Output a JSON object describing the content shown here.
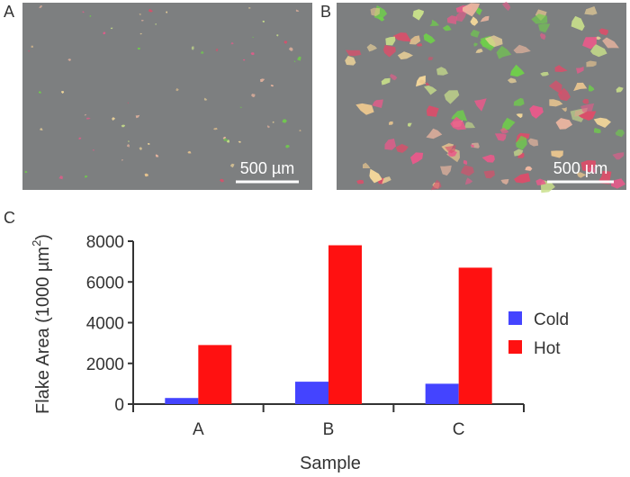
{
  "panels": [
    {
      "label": "A",
      "scale_label": "500 µm",
      "background": "#7d7f80",
      "flake_density": "low"
    },
    {
      "label": "B",
      "scale_label": "500 µm",
      "background": "#7d7f80",
      "flake_density": "high"
    },
    {
      "label": "C"
    }
  ],
  "flake_colors": [
    "#f0b8a0",
    "#e9c58e",
    "#e85a8a",
    "#d94f6a",
    "#6fcf4a",
    "#f3d79a",
    "#c9e08a"
  ],
  "chart_data": {
    "type": "bar",
    "categories": [
      "A",
      "B",
      "C"
    ],
    "series": [
      {
        "name": "Cold",
        "color": "#4444ff",
        "values": [
          300,
          1100,
          1000
        ]
      },
      {
        "name": "Hot",
        "color": "#ff1111",
        "values": [
          2900,
          7800,
          6700
        ]
      }
    ],
    "xlabel": "Sample",
    "ylabel": "Flake Area (1000 µm",
    "ylabel_superscript": "2",
    "ylabel_close": ")",
    "ylim": [
      0,
      8000
    ],
    "yticks": [
      0,
      2000,
      4000,
      6000,
      8000
    ],
    "grid": false,
    "legend_position": "right"
  }
}
